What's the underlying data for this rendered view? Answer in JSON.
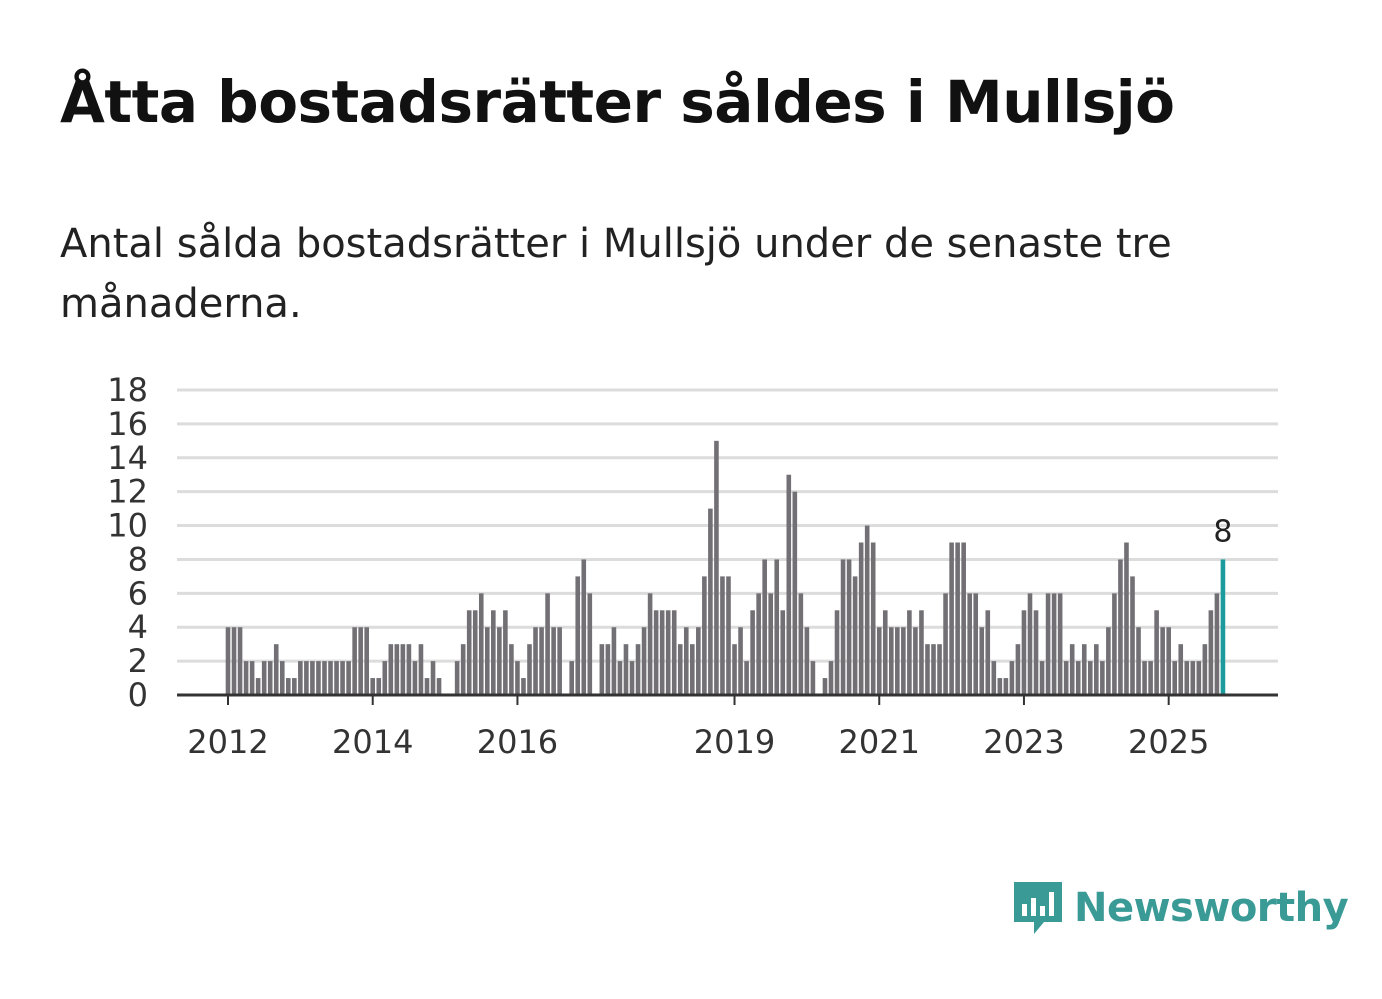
{
  "title": "Åtta bostadsrätter såldes i Mullsjö",
  "subtitle": "Antal sålda bostadsrätter i Mullsjö under de senaste tre månaderna.",
  "brand": {
    "name": "Newsworthy",
    "color": "#3a9a96",
    "icon": "newsworthy-logo-icon"
  },
  "colors": {
    "bar": "#727075",
    "highlight": "#1b9b9b",
    "grid": "#dcdcdc"
  },
  "chart_data": {
    "type": "bar",
    "title": "Åtta bostadsrätter såldes i Mullsjö",
    "xlabel": "",
    "ylabel": "",
    "ylim": [
      0,
      18
    ],
    "yticks": [
      "0",
      "2",
      "4",
      "6",
      "8",
      "10",
      "12",
      "14",
      "16",
      "18"
    ],
    "xticks": [
      {
        "label": "2012",
        "index": 0
      },
      {
        "label": "2014",
        "index": 24
      },
      {
        "label": "2016",
        "index": 48
      },
      {
        "label": "2019",
        "index": 84
      },
      {
        "label": "2021",
        "index": 108
      },
      {
        "label": "2023",
        "index": 132
      },
      {
        "label": "2025",
        "index": 156
      }
    ],
    "start_month": "2012-01",
    "values": [
      4,
      4,
      4,
      2,
      2,
      1,
      2,
      2,
      3,
      2,
      1,
      1,
      2,
      2,
      2,
      2,
      2,
      2,
      2,
      2,
      2,
      4,
      4,
      4,
      1,
      1,
      2,
      3,
      3,
      3,
      3,
      2,
      3,
      1,
      2,
      1,
      0,
      0,
      2,
      3,
      5,
      5,
      6,
      4,
      5,
      4,
      5,
      3,
      2,
      1,
      3,
      4,
      4,
      6,
      4,
      4,
      0,
      2,
      7,
      8,
      6,
      0,
      3,
      3,
      4,
      2,
      3,
      2,
      3,
      4,
      6,
      5,
      5,
      5,
      5,
      3,
      4,
      3,
      4,
      7,
      11,
      15,
      7,
      7,
      3,
      4,
      2,
      5,
      6,
      8,
      6,
      8,
      5,
      13,
      12,
      6,
      4,
      2,
      0,
      1,
      2,
      5,
      8,
      8,
      7,
      9,
      10,
      9,
      4,
      5,
      4,
      4,
      4,
      5,
      4,
      5,
      3,
      3,
      3,
      6,
      9,
      9,
      9,
      6,
      6,
      4,
      5,
      2,
      1,
      1,
      2,
      3,
      5,
      6,
      5,
      2,
      6,
      6,
      6,
      2,
      3,
      2,
      3,
      2,
      3,
      2,
      4,
      6,
      8,
      9,
      7,
      4,
      2,
      2,
      5,
      4,
      4,
      2,
      3,
      2,
      2,
      2,
      3,
      5,
      6,
      8
    ],
    "highlight_index": 165,
    "highlight_label": "8"
  }
}
